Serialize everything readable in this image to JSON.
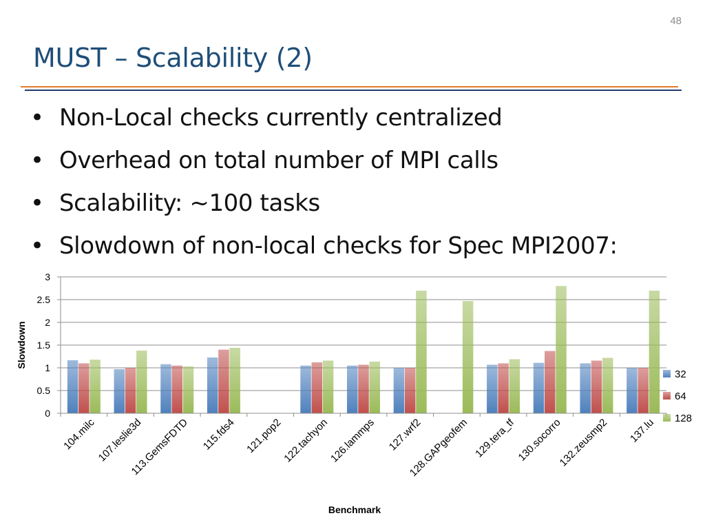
{
  "slide": {
    "number": "48",
    "title": "MUST – Scalability (2)",
    "bullets": [
      "Non-Local checks currently centralized",
      "Overhead on total number of MPI calls",
      "Scalability: ~100 tasks",
      "Slowdown of non-local checks for Spec MPI2007:"
    ]
  },
  "chart_data": {
    "type": "bar",
    "title": "",
    "xlabel": "Benchmark",
    "ylabel": "Slowdown",
    "ylim": [
      0,
      3
    ],
    "yticks": [
      "0",
      "0.5",
      "1",
      "1.5",
      "2",
      "2.5",
      "3"
    ],
    "grid": true,
    "legend_position": "right",
    "categories": [
      "104.milc",
      "107.leslie3d",
      "113.GemsFDTD",
      "115.fds4",
      "121.pop2",
      "122.tachyon",
      "126.lammps",
      "127.wrf2",
      "128.GAPgeofem",
      "129.tera_tf",
      "130.socorro",
      "132.zeusmp2",
      "137.lu"
    ],
    "series": [
      {
        "name": "32",
        "color": "#4f81bd",
        "values": [
          1.17,
          0.97,
          1.08,
          1.23,
          null,
          1.05,
          1.05,
          1.0,
          null,
          1.07,
          1.11,
          1.1,
          1.0
        ]
      },
      {
        "name": "64",
        "color": "#c0504d",
        "values": [
          1.1,
          1.0,
          1.05,
          1.4,
          null,
          1.12,
          1.07,
          1.0,
          null,
          1.1,
          1.37,
          1.16,
          1.0
        ]
      },
      {
        "name": "128",
        "color": "#9bbb59",
        "values": [
          1.18,
          1.38,
          1.03,
          1.44,
          null,
          1.16,
          1.14,
          2.7,
          2.47,
          1.19,
          2.8,
          1.22,
          2.7
        ]
      }
    ]
  }
}
